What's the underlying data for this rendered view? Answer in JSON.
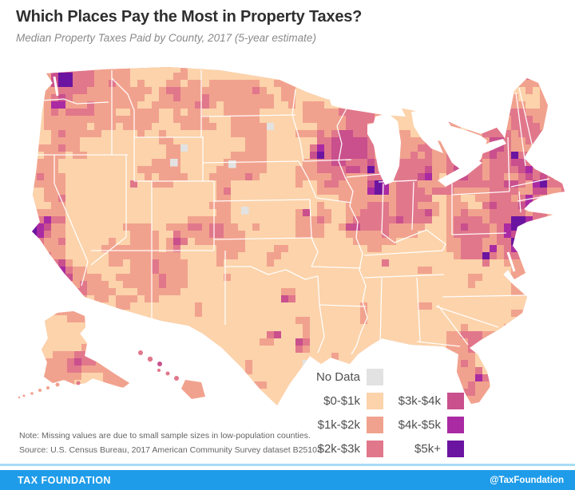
{
  "header": {
    "title": "Which Places Pay the Most in Property Taxes?",
    "subtitle": "Median Property Taxes Paid by County, 2017 (5-year estimate)"
  },
  "legend": {
    "items": [
      {
        "label": "No Data",
        "color": "#e2e2e2"
      },
      {
        "label": "$0-$1k",
        "color": "#fcd3ab"
      },
      {
        "label": "$1k-$2k",
        "color": "#f1a28e"
      },
      {
        "label": "$2k-$3k",
        "color": "#e1778b"
      },
      {
        "label": "$3k-$4k",
        "color": "#c94f8d"
      },
      {
        "label": "$4k-$5k",
        "color": "#a92aa3"
      },
      {
        "label": "$5k+",
        "color": "#6b14a1"
      }
    ]
  },
  "map": {
    "type": "choropleth",
    "region": "United States counties (incl. Alaska and Hawaii insets)",
    "ocean_color": "#ffffff",
    "state_border_color": "#ffffff"
  },
  "notes": {
    "line1": "Note: Missing values are due to small sample sizes in low-population counties.",
    "line2": "Source: U.S. Census Bureau, 2017 American Community Survey dataset B25103"
  },
  "footer": {
    "brand": "TAX FOUNDATION",
    "handle": "@TaxFoundation",
    "bar_color": "#1f9ce9",
    "accent_line_color": "#aadcf6"
  }
}
